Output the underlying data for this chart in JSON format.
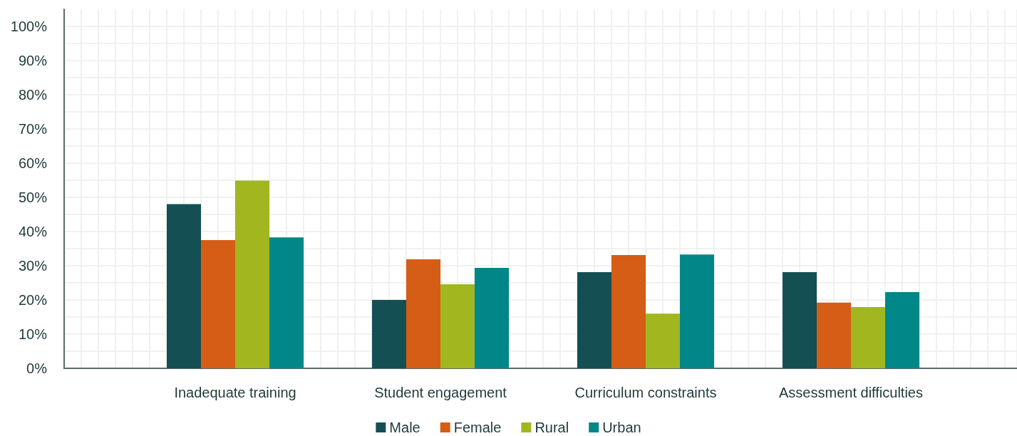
{
  "chart_data": {
    "type": "bar",
    "categories": [
      "Inadequate training",
      "Student engagement",
      "Curriculum constraints",
      "Assessment difficulties"
    ],
    "series": [
      {
        "name": "Male",
        "color": "#144f54",
        "values": [
          48.0,
          20.0,
          28.1,
          28.1
        ]
      },
      {
        "name": "Female",
        "color": "#d55d15",
        "values": [
          37.5,
          31.9,
          33.1,
          19.2
        ]
      },
      {
        "name": "Rural",
        "color": "#a2b620",
        "values": [
          54.9,
          24.6,
          16.0,
          17.9
        ]
      },
      {
        "name": "Urban",
        "color": "#028789",
        "values": [
          38.3,
          29.4,
          33.3,
          22.3
        ]
      }
    ],
    "ylim": [
      0,
      105
    ],
    "yticks": [
      {
        "value": 0,
        "label": "0%"
      },
      {
        "value": 5,
        "label": null
      },
      {
        "value": 10,
        "label": "10%"
      },
      {
        "value": 15,
        "label": null
      },
      {
        "value": 20,
        "label": "20%"
      },
      {
        "value": 25,
        "label": null
      },
      {
        "value": 30,
        "label": "30%"
      },
      {
        "value": 35,
        "label": null
      },
      {
        "value": 40,
        "label": "40%"
      },
      {
        "value": 45,
        "label": null
      },
      {
        "value": 50,
        "label": "50%"
      },
      {
        "value": 55,
        "label": null
      },
      {
        "value": 60,
        "label": "60%"
      },
      {
        "value": 65,
        "label": null
      },
      {
        "value": 70,
        "label": "70%"
      },
      {
        "value": 75,
        "label": null
      },
      {
        "value": 80,
        "label": "80%"
      },
      {
        "value": 85,
        "label": null
      },
      {
        "value": 90,
        "label": "90%"
      },
      {
        "value": 95,
        "label": null
      },
      {
        "value": 100,
        "label": "100%"
      }
    ],
    "grid": true,
    "legend": "bottom"
  }
}
